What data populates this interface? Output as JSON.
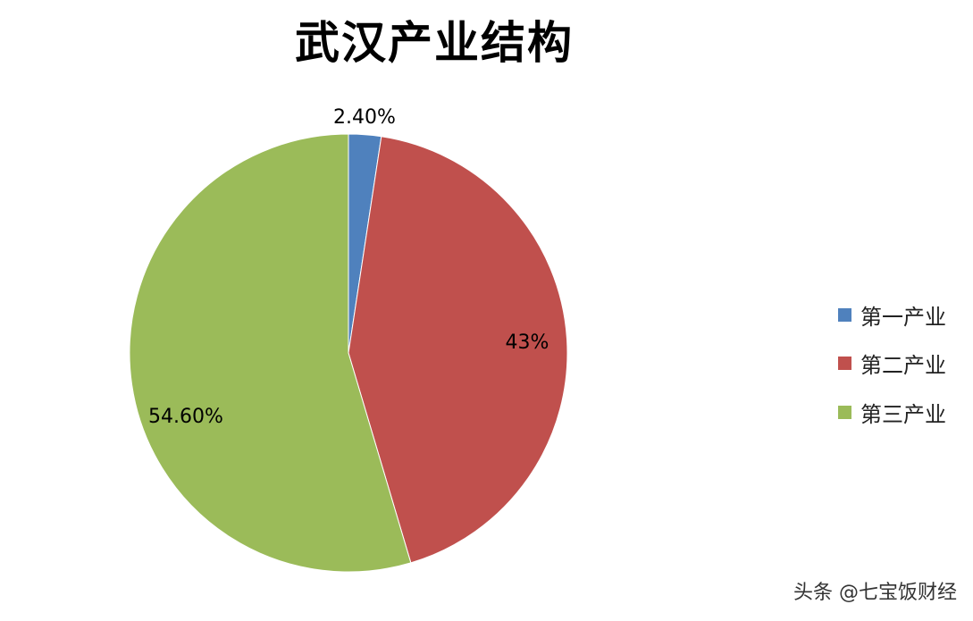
{
  "chart_data": {
    "type": "pie",
    "title": "武汉产业结构",
    "categories": [
      "第一产业",
      "第二产业",
      "第三产业"
    ],
    "values": [
      2.4,
      43,
      54.6
    ],
    "data_labels": [
      "2.40%",
      "43%",
      "54.60%"
    ],
    "colors": [
      "#4F81BD",
      "#C0504D",
      "#9BBB59"
    ],
    "start_angle": "12 o'clock",
    "direction": "clockwise",
    "legend_position": "right"
  },
  "watermark": "头条 @七宝饭财经"
}
